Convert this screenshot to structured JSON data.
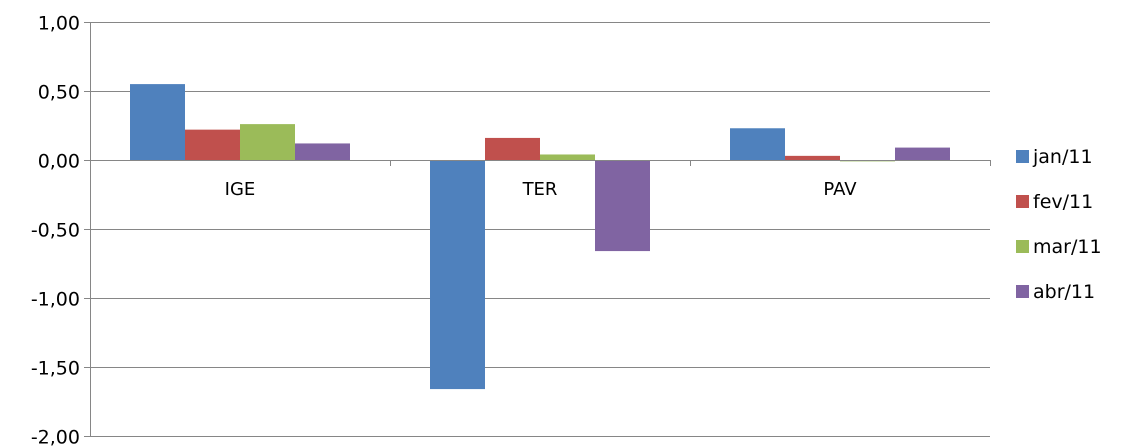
{
  "chart_data": {
    "type": "bar",
    "categories": [
      "IGE",
      "TER",
      "PAV"
    ],
    "series": [
      {
        "name": "jan/11",
        "values": [
          0.55,
          -1.66,
          0.23
        ],
        "color": "#4F81BD"
      },
      {
        "name": "fev/11",
        "values": [
          0.22,
          0.16,
          0.03
        ],
        "color": "#C0504D"
      },
      {
        "name": "mar/11",
        "values": [
          0.26,
          0.04,
          -0.01
        ],
        "color": "#9BBB59"
      },
      {
        "name": "abr/11",
        "values": [
          0.12,
          -0.66,
          0.09
        ],
        "color": "#8064A2"
      }
    ],
    "ylim": [
      -2.0,
      1.0
    ],
    "yticks": [
      1.0,
      0.5,
      0.0,
      -0.5,
      -1.0,
      -1.5,
      -2.0
    ],
    "ytick_labels": [
      "1,00",
      "0,50",
      "0,00",
      "-0,50",
      "-1,00",
      "-1,50",
      "-2,00"
    ],
    "grid": true,
    "legend_position": "right",
    "title": "",
    "xlabel": "",
    "ylabel": ""
  }
}
